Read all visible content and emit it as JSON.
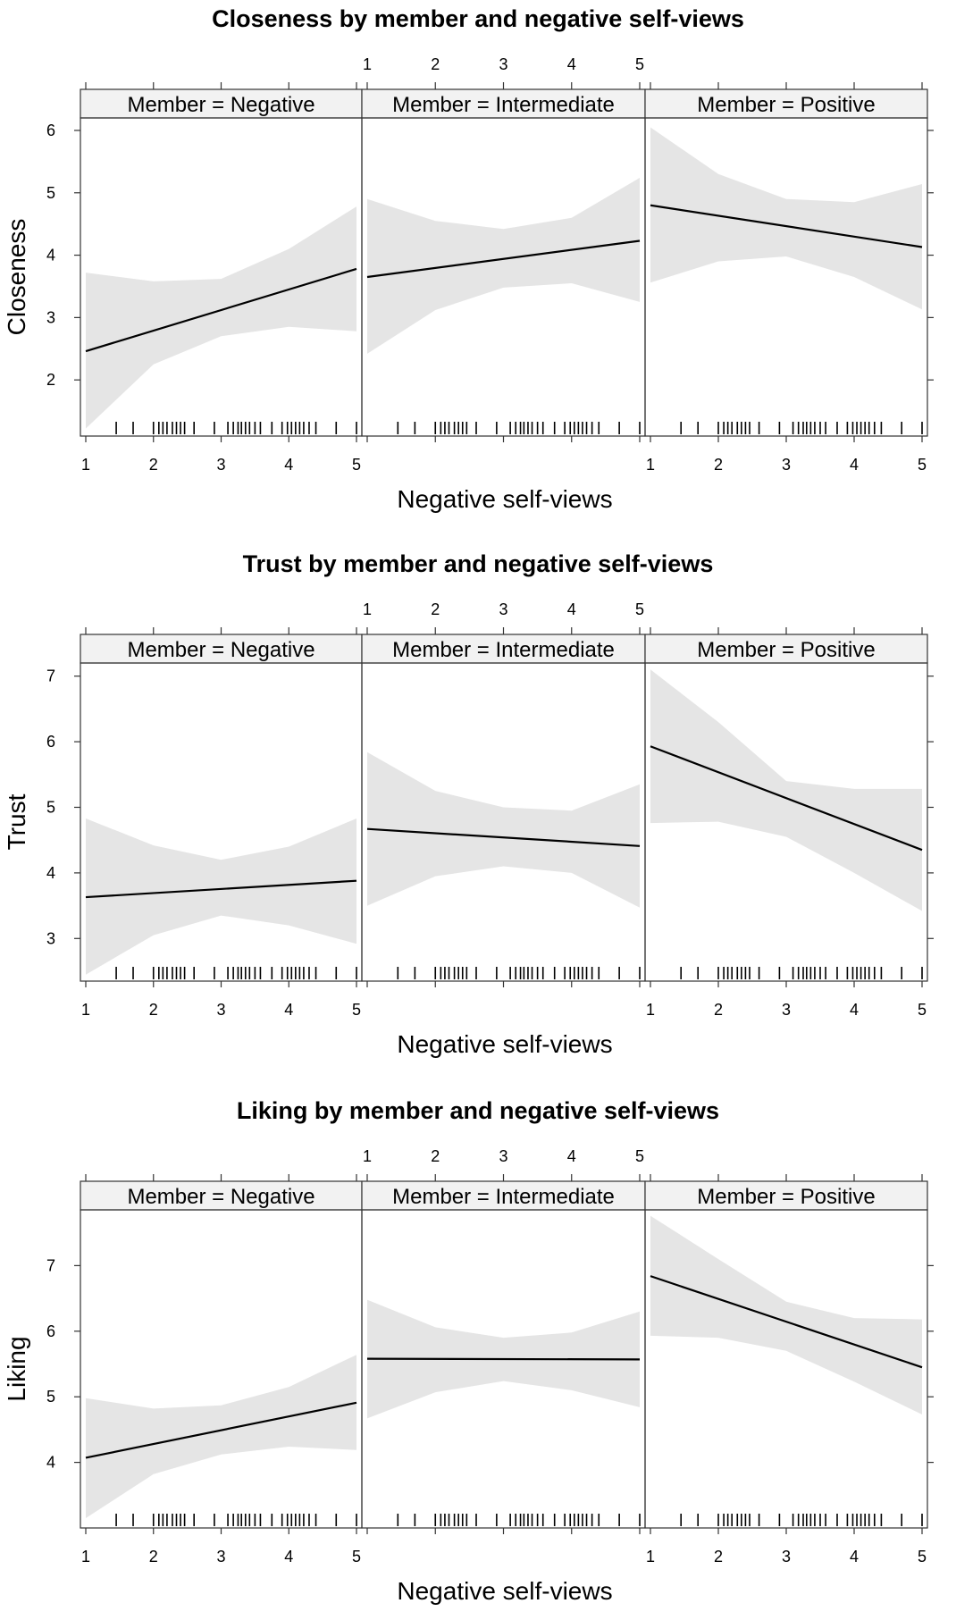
{
  "chart_data": [
    {
      "type": "line",
      "title": "Closeness by member and negative self-views",
      "xlabel": "Negative self-views",
      "ylabel": "Closeness",
      "xlim": [
        1,
        5
      ],
      "ylim": [
        1.1,
        6.2
      ],
      "yticks": [
        2,
        3,
        4,
        5,
        6
      ],
      "xticks": [
        1,
        2,
        3,
        4,
        5
      ],
      "series": [
        {
          "name": "Member = Negative",
          "x": [
            1,
            5
          ],
          "y": [
            2.46,
            3.78
          ],
          "ci_x": [
            1,
            2,
            3,
            4,
            5
          ],
          "ci_lower": [
            1.22,
            2.25,
            2.7,
            2.85,
            2.78
          ],
          "ci_upper": [
            3.72,
            3.58,
            3.62,
            4.1,
            4.78
          ]
        },
        {
          "name": "Member = Intermediate",
          "x": [
            1,
            5
          ],
          "y": [
            3.65,
            4.23
          ],
          "ci_x": [
            1,
            2,
            3,
            4,
            5
          ],
          "ci_lower": [
            2.42,
            3.12,
            3.48,
            3.55,
            3.25
          ],
          "ci_upper": [
            4.9,
            4.55,
            4.42,
            4.6,
            5.24
          ]
        },
        {
          "name": "Member = Positive",
          "x": [
            1,
            5
          ],
          "y": [
            4.8,
            4.13
          ],
          "ci_x": [
            1,
            2,
            3,
            4,
            5
          ],
          "ci_lower": [
            3.56,
            3.9,
            3.98,
            3.65,
            3.13
          ],
          "ci_upper": [
            6.05,
            5.3,
            4.9,
            4.85,
            5.14
          ]
        }
      ],
      "rug": [
        1.45,
        1.7,
        2.0,
        2.08,
        2.14,
        2.2,
        2.28,
        2.34,
        2.4,
        2.46,
        2.6,
        2.9,
        3.1,
        3.18,
        3.25,
        3.3,
        3.36,
        3.42,
        3.5,
        3.58,
        3.75,
        3.9,
        3.98,
        4.04,
        4.1,
        4.16,
        4.22,
        4.3,
        4.4,
        4.7,
        5.0
      ]
    },
    {
      "type": "line",
      "title": "Trust by member and negative self-views",
      "xlabel": "Negative self-views",
      "ylabel": "Trust",
      "xlim": [
        1,
        5
      ],
      "ylim": [
        2.35,
        7.2
      ],
      "yticks": [
        3,
        4,
        5,
        6,
        7
      ],
      "xticks": [
        1,
        2,
        3,
        4,
        5
      ],
      "series": [
        {
          "name": "Member = Negative",
          "x": [
            1,
            5
          ],
          "y": [
            3.63,
            3.88
          ],
          "ci_x": [
            1,
            2,
            3,
            4,
            5
          ],
          "ci_lower": [
            2.45,
            3.05,
            3.35,
            3.2,
            2.92
          ],
          "ci_upper": [
            4.83,
            4.42,
            4.2,
            4.4,
            4.83
          ]
        },
        {
          "name": "Member = Intermediate",
          "x": [
            1,
            5
          ],
          "y": [
            4.67,
            4.41
          ],
          "ci_x": [
            1,
            2,
            3,
            4,
            5
          ],
          "ci_lower": [
            3.5,
            3.95,
            4.1,
            4.0,
            3.47
          ],
          "ci_upper": [
            5.84,
            5.25,
            5.0,
            4.95,
            5.35
          ]
        },
        {
          "name": "Member = Positive",
          "x": [
            1,
            5
          ],
          "y": [
            5.93,
            4.35
          ],
          "ci_x": [
            1,
            2,
            3,
            4,
            5
          ],
          "ci_lower": [
            4.76,
            4.78,
            4.55,
            4.0,
            3.42
          ],
          "ci_upper": [
            7.1,
            6.3,
            5.4,
            5.28,
            5.28
          ]
        }
      ],
      "rug": [
        1.45,
        1.7,
        2.0,
        2.08,
        2.14,
        2.2,
        2.28,
        2.34,
        2.4,
        2.46,
        2.6,
        2.9,
        3.1,
        3.18,
        3.25,
        3.3,
        3.36,
        3.42,
        3.5,
        3.58,
        3.75,
        3.9,
        3.98,
        4.04,
        4.1,
        4.16,
        4.22,
        4.3,
        4.4,
        4.7,
        5.0
      ]
    },
    {
      "type": "line",
      "title": "Liking by member and negative self-views",
      "xlabel": "Negative self-views",
      "ylabel": "Liking",
      "xlim": [
        1,
        5
      ],
      "ylim": [
        3.0,
        7.85
      ],
      "yticks": [
        4,
        5,
        6,
        7
      ],
      "xticks": [
        1,
        2,
        3,
        4,
        5
      ],
      "series": [
        {
          "name": "Member = Negative",
          "x": [
            1,
            5
          ],
          "y": [
            4.07,
            4.91
          ],
          "ci_x": [
            1,
            2,
            3,
            4,
            5
          ],
          "ci_lower": [
            3.15,
            3.82,
            4.12,
            4.24,
            4.19
          ],
          "ci_upper": [
            4.98,
            4.82,
            4.87,
            5.15,
            5.64
          ]
        },
        {
          "name": "Member = Intermediate",
          "x": [
            1,
            5
          ],
          "y": [
            5.58,
            5.57
          ],
          "ci_x": [
            1,
            2,
            3,
            4,
            5
          ],
          "ci_lower": [
            4.67,
            5.07,
            5.24,
            5.1,
            4.84
          ],
          "ci_upper": [
            6.48,
            6.06,
            5.9,
            5.98,
            6.3
          ]
        },
        {
          "name": "Member = Positive",
          "x": [
            1,
            5
          ],
          "y": [
            6.84,
            5.45
          ],
          "ci_x": [
            1,
            2,
            3,
            4,
            5
          ],
          "ci_lower": [
            5.93,
            5.9,
            5.7,
            5.23,
            4.73
          ],
          "ci_upper": [
            7.76,
            7.1,
            6.45,
            6.2,
            6.18
          ]
        }
      ],
      "rug": [
        1.45,
        1.7,
        2.0,
        2.08,
        2.14,
        2.2,
        2.28,
        2.34,
        2.4,
        2.46,
        2.6,
        2.9,
        3.1,
        3.18,
        3.25,
        3.3,
        3.36,
        3.42,
        3.5,
        3.58,
        3.75,
        3.9,
        3.98,
        4.04,
        4.1,
        4.16,
        4.22,
        4.3,
        4.4,
        4.7,
        5.0
      ]
    }
  ]
}
